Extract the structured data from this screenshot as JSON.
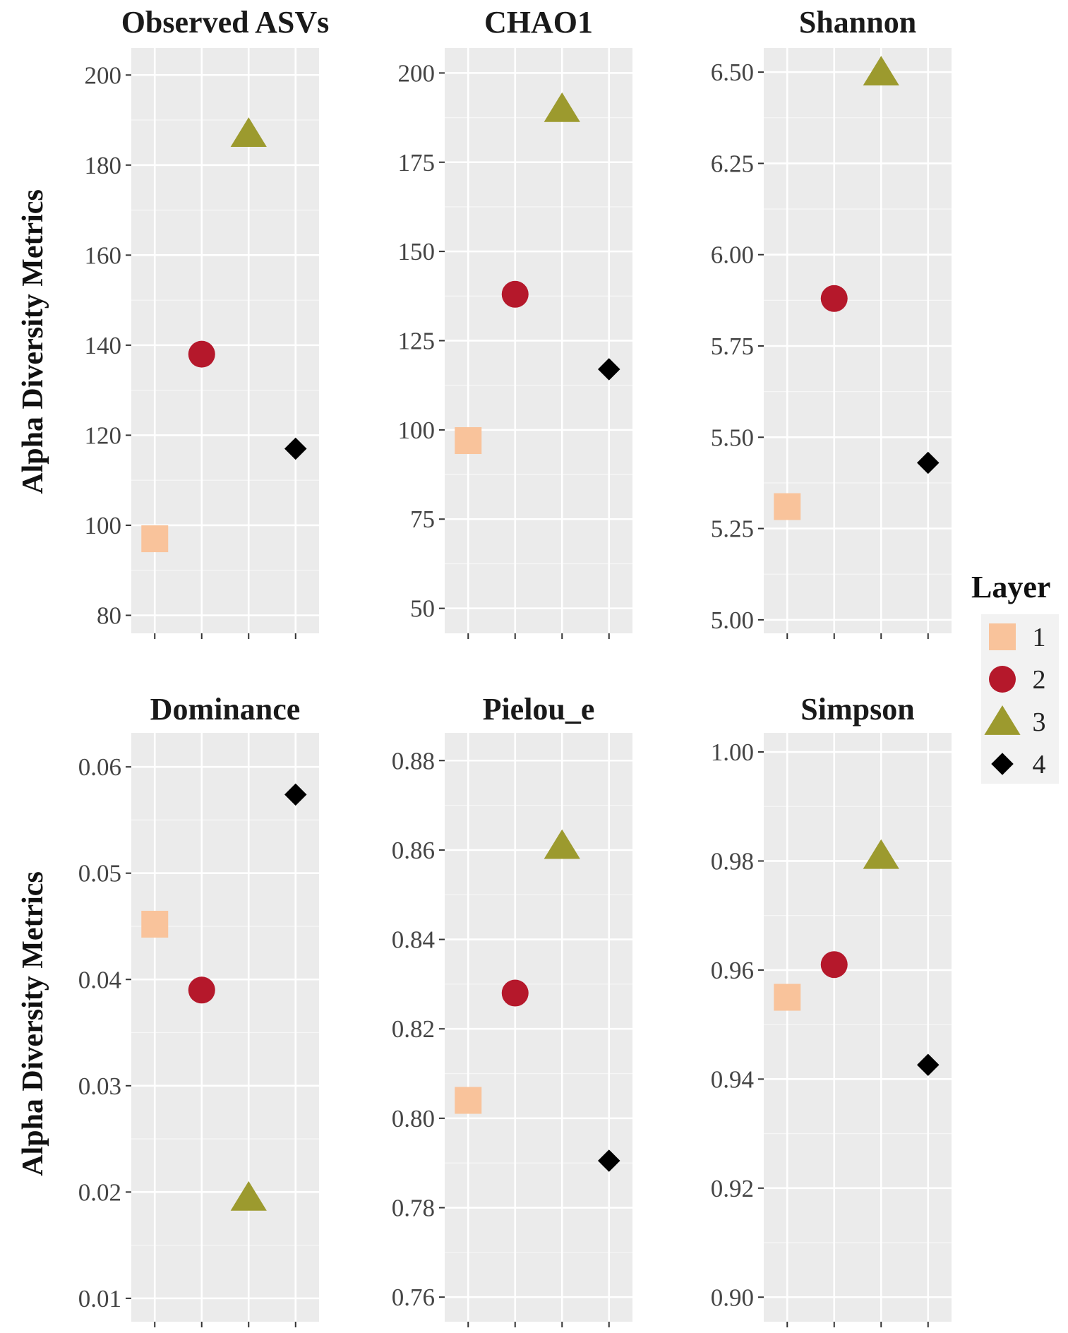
{
  "y_axis_label": "Alpha Diversity Metrics",
  "legend": {
    "title": "Layer",
    "placement": "right",
    "entries": [
      {
        "label": "1",
        "shape": "square",
        "color": "#F9C39B"
      },
      {
        "label": "2",
        "shape": "circle",
        "color": "#B5182B"
      },
      {
        "label": "3",
        "shape": "triangle",
        "color": "#9C9A2E"
      },
      {
        "label": "4",
        "shape": "diamond",
        "color": "#000000"
      }
    ]
  },
  "chart_data": [
    {
      "type": "scatter",
      "title": "Observed ASVs",
      "ylabel": "Alpha Diversity Metrics",
      "x": [
        "1",
        "2",
        "3",
        "4"
      ],
      "y": [
        97,
        138,
        187,
        117
      ],
      "ylim": [
        76,
        206
      ],
      "yticks": [
        80,
        100,
        120,
        140,
        160,
        180,
        200
      ],
      "tick_labels": [
        "80",
        "100",
        "120",
        "140",
        "160",
        "180",
        "200"
      ],
      "grid": true
    },
    {
      "type": "scatter",
      "title": "CHAO1",
      "ylabel": "",
      "x": [
        "1",
        "2",
        "3",
        "4"
      ],
      "y": [
        97,
        138,
        190,
        117
      ],
      "ylim": [
        43,
        207
      ],
      "yticks": [
        50,
        75,
        100,
        125,
        150,
        175,
        200
      ],
      "tick_labels": [
        "50",
        "75",
        "100",
        "125",
        "150",
        "175",
        "200"
      ],
      "grid": true
    },
    {
      "type": "scatter",
      "title": "Shannon",
      "ylabel": "",
      "x": [
        "1",
        "2",
        "3",
        "4"
      ],
      "y": [
        5.31,
        5.88,
        6.5,
        5.43
      ],
      "ylim": [
        4.963,
        6.566
      ],
      "yticks": [
        5.0,
        5.25,
        5.5,
        5.75,
        6.0,
        6.25,
        6.5
      ],
      "tick_labels": [
        "5.00",
        "5.25",
        "5.50",
        "5.75",
        "6.00",
        "6.25",
        "6.50"
      ],
      "grid": true
    },
    {
      "type": "scatter",
      "title": "Dominance",
      "ylabel": "Alpha Diversity Metrics",
      "x": [
        "1",
        "2",
        "3",
        "4"
      ],
      "y": [
        0.0452,
        0.039,
        0.0195,
        0.0574
      ],
      "ylim": [
        0.0078,
        0.0632
      ],
      "yticks": [
        0.01,
        0.02,
        0.03,
        0.04,
        0.05,
        0.06
      ],
      "tick_labels": [
        "0.01",
        "0.02",
        "0.03",
        "0.04",
        "0.05",
        "0.06"
      ],
      "grid": true
    },
    {
      "type": "scatter",
      "title": "Pielou_e",
      "ylabel": "",
      "x": [
        "1",
        "2",
        "3",
        "4"
      ],
      "y": [
        0.804,
        0.828,
        0.861,
        0.7905
      ],
      "ylim": [
        0.7545,
        0.8862
      ],
      "yticks": [
        0.76,
        0.78,
        0.8,
        0.82,
        0.84,
        0.86,
        0.88
      ],
      "tick_labels": [
        "0.76",
        "0.78",
        "0.80",
        "0.82",
        "0.84",
        "0.86",
        "0.88"
      ],
      "grid": true
    },
    {
      "type": "scatter",
      "title": "Simpson",
      "ylabel": "",
      "x": [
        "1",
        "2",
        "3",
        "4"
      ],
      "y": [
        0.955,
        0.961,
        0.981,
        0.9426
      ],
      "ylim": [
        0.8955,
        1.0035
      ],
      "yticks": [
        0.9,
        0.92,
        0.94,
        0.96,
        0.98,
        1.0
      ],
      "tick_labels": [
        "0.90",
        "0.92",
        "0.94",
        "0.96",
        "0.98",
        "1.00"
      ],
      "grid": true
    }
  ]
}
